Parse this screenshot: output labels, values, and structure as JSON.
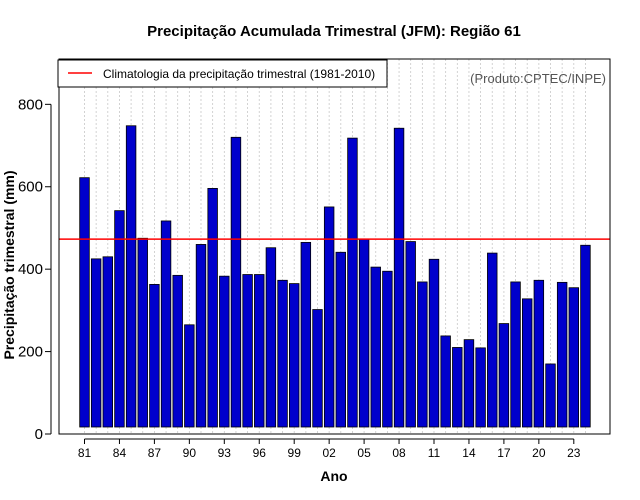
{
  "chart_data": {
    "type": "bar",
    "title": "Precipitação Acumulada Trimestral (JFM): Região 61",
    "xlabel": "Ano",
    "ylabel": "Precipitação trimestral (mm)",
    "credit": "(Produto:CPTEC/INPE)",
    "ylim": [
      0,
      910
    ],
    "yticks": [
      0,
      200,
      400,
      600,
      800
    ],
    "categories": [
      "81",
      "82",
      "83",
      "84",
      "85",
      "86",
      "87",
      "88",
      "89",
      "90",
      "91",
      "92",
      "93",
      "94",
      "95",
      "96",
      "97",
      "98",
      "99",
      "00",
      "01",
      "02",
      "03",
      "04",
      "05",
      "06",
      "07",
      "08",
      "09",
      "10",
      "11",
      "12",
      "13",
      "14",
      "15",
      "16",
      "17",
      "18",
      "19",
      "20",
      "21",
      "22",
      "23",
      "24"
    ],
    "xtick_labels": [
      "81",
      "84",
      "87",
      "90",
      "93",
      "96",
      "99",
      "02",
      "05",
      "08",
      "11",
      "14",
      "17",
      "20",
      "23"
    ],
    "values": [
      622,
      425,
      430,
      542,
      748,
      475,
      363,
      517,
      385,
      265,
      460,
      596,
      383,
      720,
      387,
      387,
      452,
      373,
      365,
      465,
      302,
      551,
      441,
      718,
      473,
      405,
      395,
      742,
      467,
      369,
      424,
      238,
      210,
      229,
      209,
      439,
      268,
      369,
      328,
      373,
      170,
      368,
      355,
      458
    ],
    "bar_color": "#0000cc",
    "bar_edge_color": "#000000",
    "grid": true,
    "reference_line": {
      "label": "Climatologia da precipitação trimestral (1981-2010)",
      "value": 473,
      "color": "#ff0000"
    },
    "legend_position": "top-left"
  }
}
